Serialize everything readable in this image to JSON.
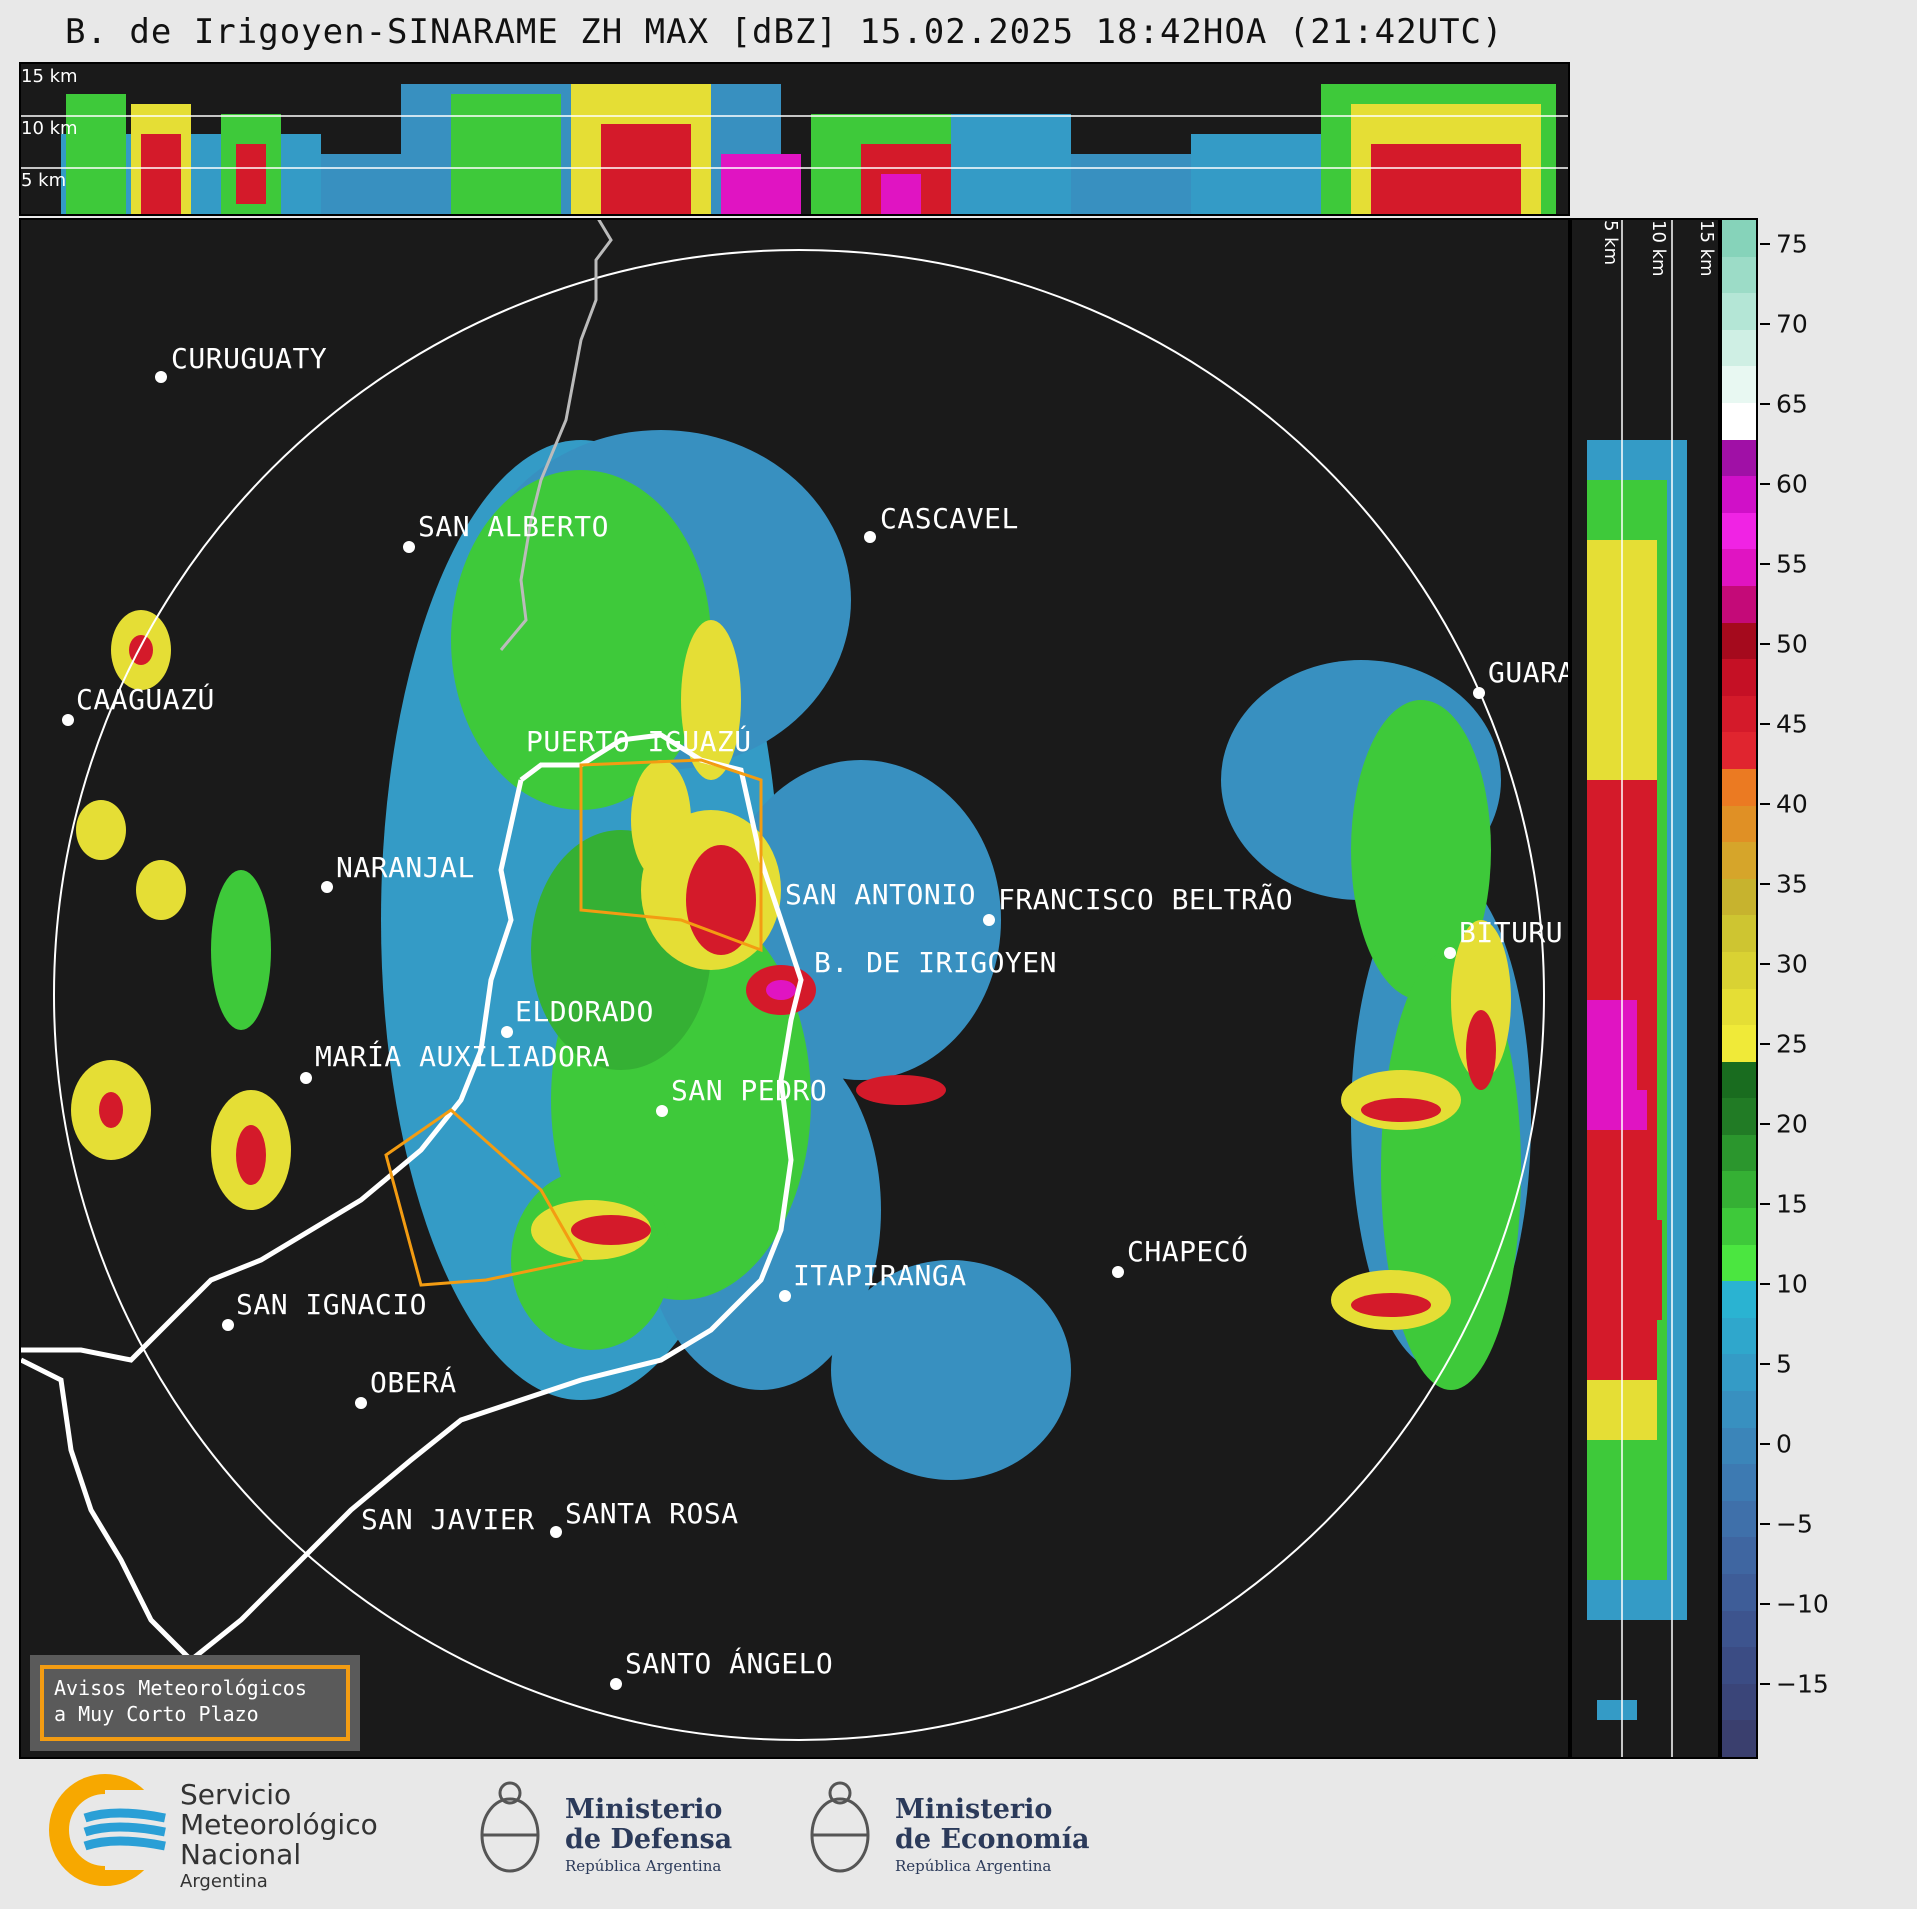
{
  "title": "B. de Irigoyen-SINARAME ZH MAX [dBZ] 15.02.2025 18:42HOA (21:42UTC)",
  "top_strip": {
    "labels": [
      "15 km",
      "10 km",
      "5 km"
    ]
  },
  "right_strip": {
    "labels": [
      "5 km",
      "10 km",
      "15 km"
    ]
  },
  "colorbar": {
    "ticks": [
      "75",
      "70",
      "65",
      "60",
      "55",
      "50",
      "45",
      "40",
      "35",
      "30",
      "25",
      "20",
      "15",
      "10",
      "5",
      "0",
      "−5",
      "−10",
      "−15"
    ],
    "colors": [
      "#3a3f6e",
      "#3a4579",
      "#3b4c84",
      "#3d548e",
      "#3e5d98",
      "#3f66a1",
      "#3f70aa",
      "#3d7ab2",
      "#3b85b9",
      "#3890c0",
      "#349bc6",
      "#2fa7cc",
      "#2ab3d2",
      "#4be640",
      "#3ec93a",
      "#35b034",
      "#2b962d",
      "#217b25",
      "#196c1f",
      "#f0ea38",
      "#e5de35",
      "#d9d233",
      "#cec531",
      "#c7b32e",
      "#d6a52a",
      "#e09025",
      "#eb7a22",
      "#e0252f",
      "#d41a2a",
      "#c51025",
      "#a50a1d",
      "#c40a78",
      "#e014c2",
      "#f023e4",
      "#d010c8",
      "#a010a6",
      "#ffffff",
      "#e8f8f2",
      "#cfefe4",
      "#b4e6d6",
      "#9cdcc7",
      "#86d3ba"
    ],
    "accent_colors": {
      "warning_box": "#f39c12",
      "city_label": "#ffffff",
      "range_ring": "#ffffff"
    }
  },
  "cities": [
    {
      "name": "CURUGUATY"
    },
    {
      "name": "SAN ALBERTO"
    },
    {
      "name": "CASCAVEL"
    },
    {
      "name": "CAAGUAZÚ"
    },
    {
      "name": "GUARA"
    },
    {
      "name": "PUERTO IGUAZÚ"
    },
    {
      "name": "NARANJAL"
    },
    {
      "name": "SAN ANTONIO"
    },
    {
      "name": "FRANCISCO BELTRÃO"
    },
    {
      "name": "B. DE IRIGOYEN"
    },
    {
      "name": "BITURU"
    },
    {
      "name": "ELDORADO"
    },
    {
      "name": "MARÍA AUXILIADORA"
    },
    {
      "name": "SAN PEDRO"
    },
    {
      "name": "CHAPECÓ"
    },
    {
      "name": "ITAPIRANGA"
    },
    {
      "name": "SAN IGNACIO"
    },
    {
      "name": "OBERÁ"
    },
    {
      "name": "SAN JAVIER"
    },
    {
      "name": "SANTA ROSA"
    },
    {
      "name": "SANTO ÁNGELO"
    }
  ],
  "alert_box": {
    "line1": "Avisos Meteorológicos",
    "line2": "a Muy Corto Plazo"
  },
  "footer": {
    "smn": {
      "line1": "Servicio",
      "line2": "Meteorológico",
      "line3": "Nacional",
      "line4": "Argentina"
    },
    "defensa": {
      "line1": "Ministerio",
      "line2": "de Defensa",
      "line3": "República Argentina"
    },
    "economia": {
      "line1": "Ministerio",
      "line2": "de Economía",
      "line3": "República Argentina"
    }
  }
}
